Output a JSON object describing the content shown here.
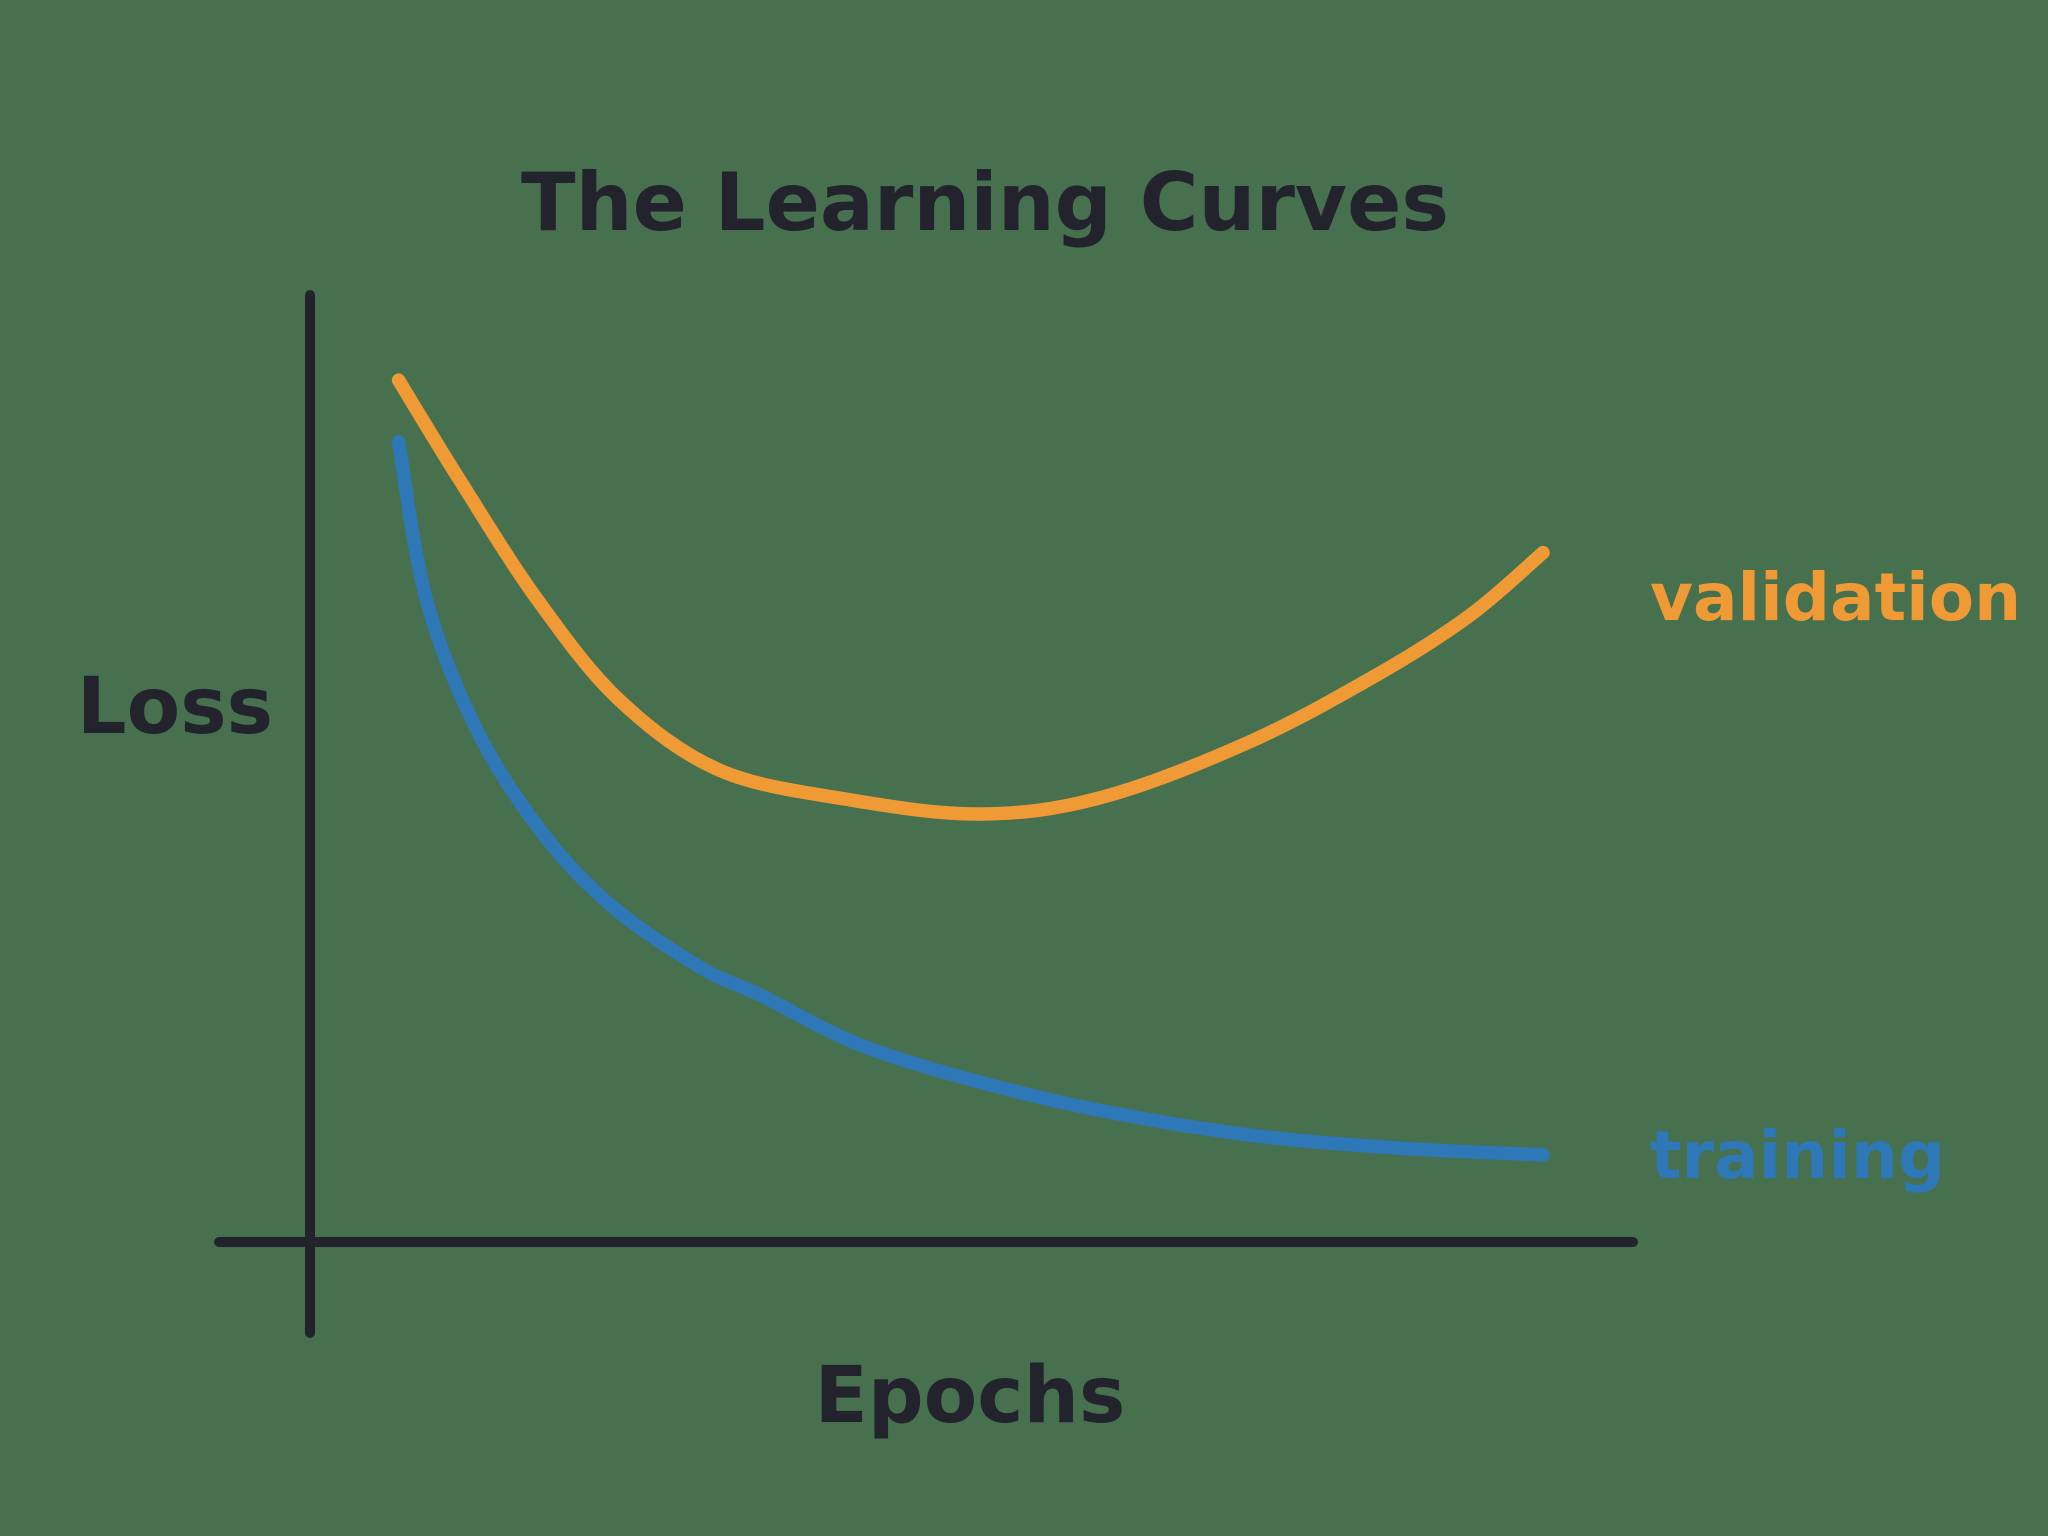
{
  "background_color": "#47704F",
  "chart_data": {
    "type": "line",
    "title": "The Learning Curves",
    "xlabel": "Epochs",
    "ylabel": "Loss",
    "x_range": [
      0,
      100
    ],
    "y_range": [
      0,
      1
    ],
    "grid": false,
    "tick_labels": "none",
    "axis_color": "#23232E",
    "text_color": "#23232E",
    "legend_position": "labels-at-curve-ends-right",
    "series": [
      {
        "name": "validation",
        "color": "#F09A36",
        "shape": "u-shaped, decreases then rises (overfitting)",
        "points": [
          [
            6.7,
            0.91
          ],
          [
            11.3,
            0.805
          ],
          [
            17.2,
            0.678
          ],
          [
            23.4,
            0.572
          ],
          [
            31.0,
            0.498
          ],
          [
            40.8,
            0.467
          ],
          [
            50.6,
            0.452
          ],
          [
            59.7,
            0.469
          ],
          [
            71.0,
            0.528
          ],
          [
            80.9,
            0.601
          ],
          [
            87.7,
            0.662
          ],
          [
            93.2,
            0.728
          ]
        ]
      },
      {
        "name": "training",
        "color": "#2E78B8",
        "shape": "monotonically decreasing, flattens out",
        "points": [
          [
            6.7,
            0.845
          ],
          [
            8.8,
            0.678
          ],
          [
            12.6,
            0.541
          ],
          [
            17.4,
            0.435
          ],
          [
            22.7,
            0.356
          ],
          [
            29.5,
            0.29
          ],
          [
            34.0,
            0.261
          ],
          [
            41.6,
            0.208
          ],
          [
            50.6,
            0.169
          ],
          [
            59.7,
            0.139
          ],
          [
            71.0,
            0.113
          ],
          [
            82.4,
            0.099
          ],
          [
            93.2,
            0.092
          ]
        ]
      }
    ]
  }
}
